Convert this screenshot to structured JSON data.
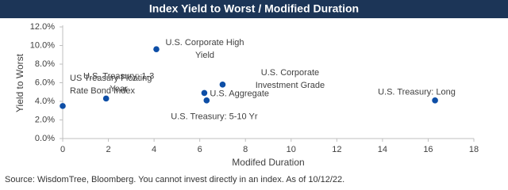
{
  "chart_data": {
    "type": "scatter",
    "title": "Index Yield to Worst / Modified Duration",
    "x_label": "Modifed Duration",
    "y_label": "Yield to Worst",
    "source": "Source: WisdomTree, Bloomberg. You cannot invest directly in an index. As of 10/12/22.",
    "color": "#0d4ea6",
    "grid": false,
    "x": [
      0,
      1.9,
      4.1,
      6.2,
      6.3,
      7.0,
      16.3
    ],
    "values": [
      3.5,
      4.3,
      9.6,
      4.9,
      4.1,
      5.8,
      4.1
    ],
    "labels": [
      [
        "US Treasury Floating",
        "Rate Bond Index"
      ],
      [
        "U.S. Treasury: 1-3",
        "Year"
      ],
      [
        "U.S. Corporate High",
        "Yield"
      ],
      [
        "U.S. Aggregate"
      ],
      [
        "U.S. Treasury: 5-10 Yr"
      ],
      [
        "U.S. Corporate",
        "Investment Grade"
      ],
      [
        "U.S. Treasury: Long"
      ]
    ],
    "xlim": [
      0,
      18
    ],
    "xticks": [
      0,
      2,
      4,
      6,
      8,
      10,
      12,
      14,
      16,
      18
    ],
    "ylim": [
      0,
      12
    ],
    "yticks": [
      {
        "value": 0,
        "label": "0.0%"
      },
      {
        "value": 2,
        "label": "2.0%"
      },
      {
        "value": 4,
        "label": "4.0%"
      },
      {
        "value": 6,
        "label": "6.0%"
      },
      {
        "value": 8,
        "label": "8.0%"
      },
      {
        "value": 10,
        "label": "10.0%"
      },
      {
        "value": 12,
        "label": "12.0%"
      }
    ]
  }
}
